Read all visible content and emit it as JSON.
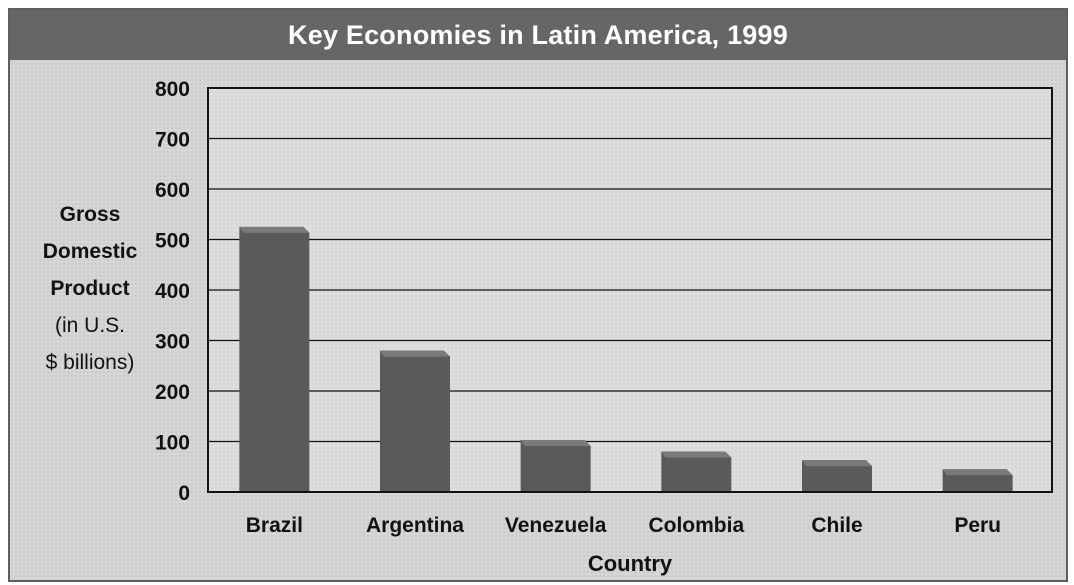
{
  "chart_data": {
    "type": "bar",
    "title": "Key Economies in Latin America, 1999",
    "ylabel_lines": [
      "Gross",
      "Domestic",
      "Product",
      "(in U.S.",
      "$ billions)"
    ],
    "xlabel": "Country",
    "categories": [
      "Brazil",
      "Argentina",
      "Venezuela",
      "Colombia",
      "Chile",
      "Peru"
    ],
    "values": [
      525,
      280,
      103,
      80,
      63,
      45
    ],
    "ylim": [
      0,
      800
    ],
    "yticks": [
      0,
      100,
      200,
      300,
      400,
      500,
      600,
      700,
      800
    ],
    "grid": true,
    "colors": {
      "bar": "#5a5a5a",
      "bar_highlight": "#7a7a7a",
      "title_bg": "#666666",
      "title_text": "#ffffff",
      "background": "#d6d6d6",
      "plot_background": "#ececec",
      "axis": "#111111"
    }
  }
}
